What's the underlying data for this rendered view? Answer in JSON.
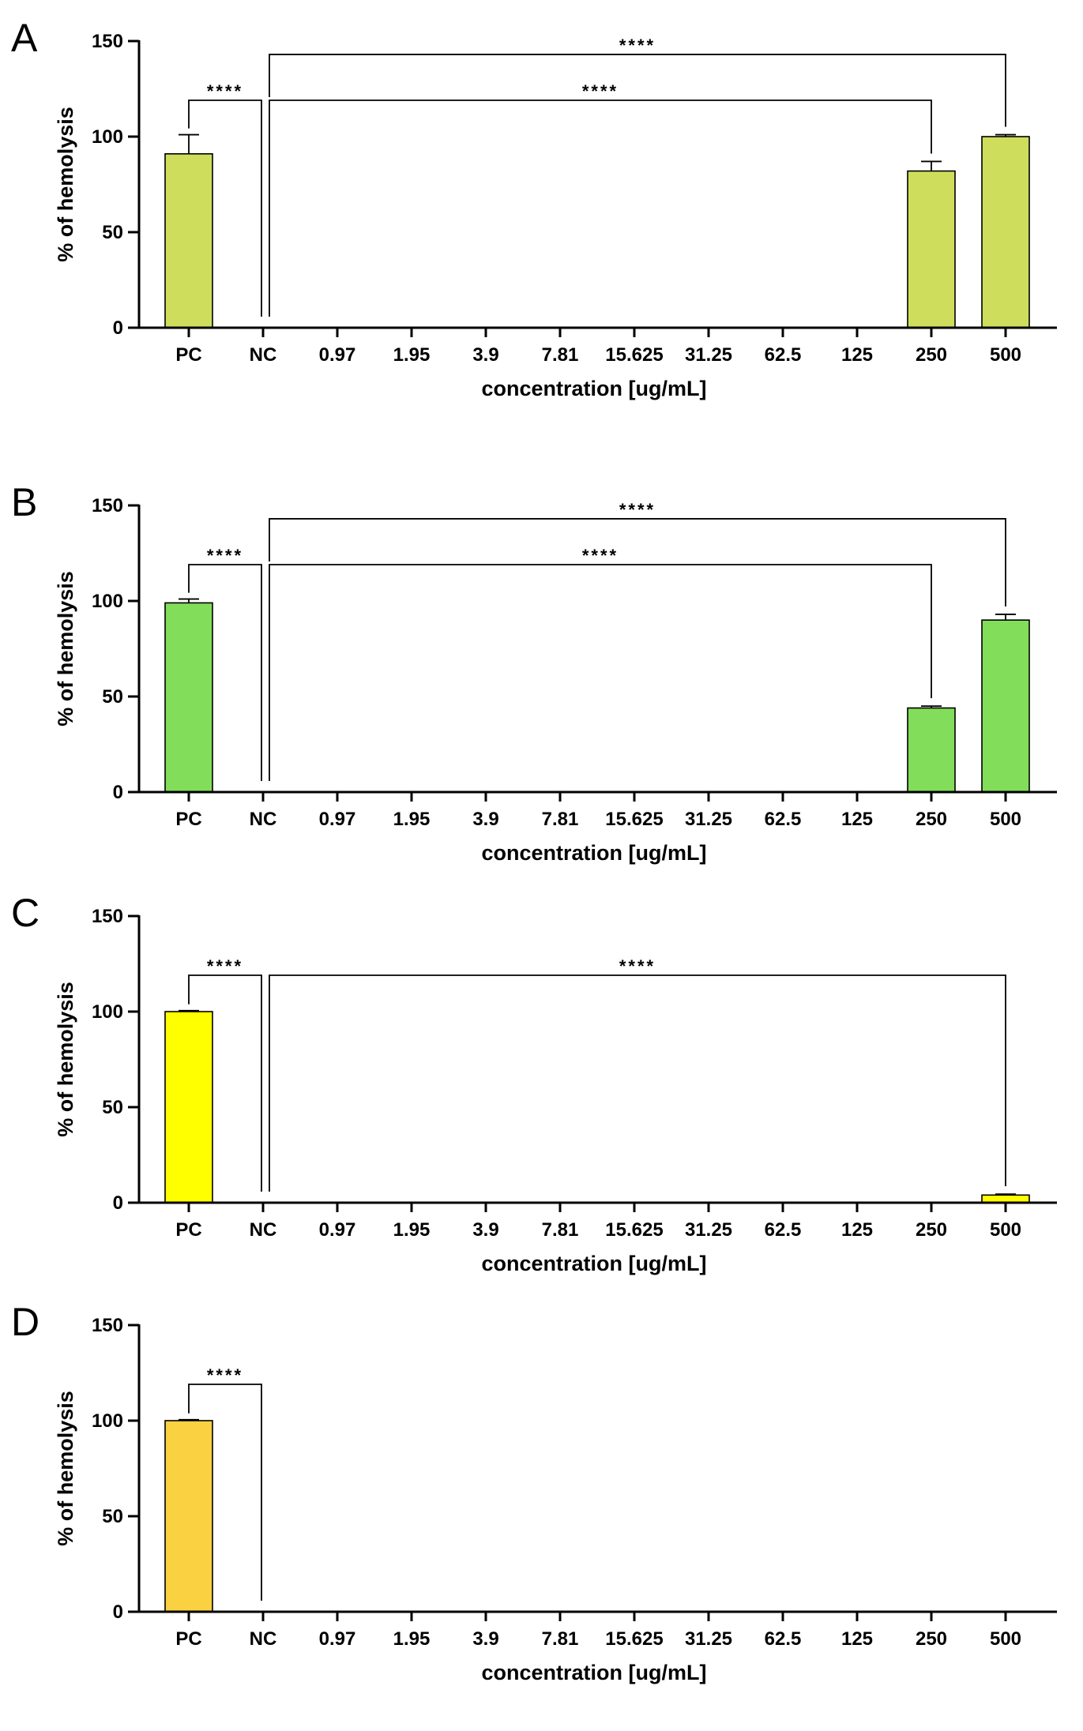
{
  "colors": {
    "axis": "#000000",
    "bracket": "#000000"
  },
  "chart_data": [
    {
      "panel_label": "A",
      "type": "bar",
      "categories": [
        "PC",
        "NC",
        "0.97",
        "1.95",
        "3.9",
        "7.81",
        "15.625",
        "31.25",
        "62.5",
        "125",
        "250",
        "500"
      ],
      "series": [
        {
          "values": [
            91,
            0,
            0,
            0,
            0,
            0,
            0,
            0,
            0,
            0,
            82,
            100
          ],
          "errors": [
            10,
            0,
            0,
            0,
            0,
            0,
            0,
            0,
            0,
            0,
            5,
            1
          ],
          "color": "#cede5c"
        }
      ],
      "xlabel": "concentration [ug/mL]",
      "ylabel": "% of hemolysis",
      "ylim": [
        0,
        150
      ],
      "yticks": [
        0,
        50,
        100,
        150
      ],
      "grid": false,
      "significance": [
        {
          "from": "PC",
          "to": "NC",
          "label": "****",
          "level": 119
        },
        {
          "from": "NC",
          "to": "250",
          "label": "****",
          "level": 119
        },
        {
          "from": "NC",
          "to": "500",
          "label": "****",
          "level": 143
        }
      ]
    },
    {
      "panel_label": "B",
      "type": "bar",
      "categories": [
        "PC",
        "NC",
        "0.97",
        "1.95",
        "3.9",
        "7.81",
        "15.625",
        "31.25",
        "62.5",
        "125",
        "250",
        "500"
      ],
      "series": [
        {
          "values": [
            99,
            0,
            0,
            0,
            0,
            0,
            0,
            0,
            0,
            0,
            44,
            90
          ],
          "errors": [
            2,
            0,
            0,
            0,
            0,
            0,
            0,
            0,
            0,
            0,
            1,
            3
          ],
          "color": "#82dd5a"
        }
      ],
      "xlabel": "concentration [ug/mL]",
      "ylabel": "% of hemolysis",
      "ylim": [
        0,
        150
      ],
      "yticks": [
        0,
        50,
        100,
        150
      ],
      "grid": false,
      "significance": [
        {
          "from": "PC",
          "to": "NC",
          "label": "****",
          "level": 119
        },
        {
          "from": "NC",
          "to": "250",
          "label": "****",
          "level": 119
        },
        {
          "from": "NC",
          "to": "500",
          "label": "****",
          "level": 143
        }
      ]
    },
    {
      "panel_label": "C",
      "type": "bar",
      "categories": [
        "PC",
        "NC",
        "0.97",
        "1.95",
        "3.9",
        "7.81",
        "15.625",
        "31.25",
        "62.5",
        "125",
        "250",
        "500"
      ],
      "series": [
        {
          "values": [
            100,
            0,
            0,
            0,
            0,
            0,
            0,
            0,
            0,
            0,
            0,
            4
          ],
          "errors": [
            0.5,
            0,
            0,
            0,
            0,
            0,
            0,
            0,
            0,
            0,
            0,
            0.5
          ],
          "color": "#ffff00"
        }
      ],
      "xlabel": "concentration [ug/mL]",
      "ylabel": "% of hemolysis",
      "ylim": [
        0,
        150
      ],
      "yticks": [
        0,
        50,
        100,
        150
      ],
      "grid": false,
      "significance": [
        {
          "from": "PC",
          "to": "NC",
          "label": "****",
          "level": 119
        },
        {
          "from": "NC",
          "to": "500",
          "label": "****",
          "level": 119
        }
      ]
    },
    {
      "panel_label": "D",
      "type": "bar",
      "categories": [
        "PC",
        "NC",
        "0.97",
        "1.95",
        "3.9",
        "7.81",
        "15.625",
        "31.25",
        "62.5",
        "125",
        "250",
        "500"
      ],
      "series": [
        {
          "values": [
            100,
            0,
            0,
            0,
            0,
            0,
            0,
            0,
            0,
            0,
            0,
            0
          ],
          "errors": [
            0.5,
            0,
            0,
            0,
            0,
            0,
            0,
            0,
            0,
            0,
            0,
            0
          ],
          "color": "#f9d141"
        }
      ],
      "xlabel": "concentration [ug/mL]",
      "ylabel": "% of hemolysis",
      "ylim": [
        0,
        150
      ],
      "yticks": [
        0,
        50,
        100,
        150
      ],
      "grid": false,
      "significance": [
        {
          "from": "PC",
          "to": "NC",
          "label": "****",
          "level": 119
        }
      ]
    }
  ]
}
